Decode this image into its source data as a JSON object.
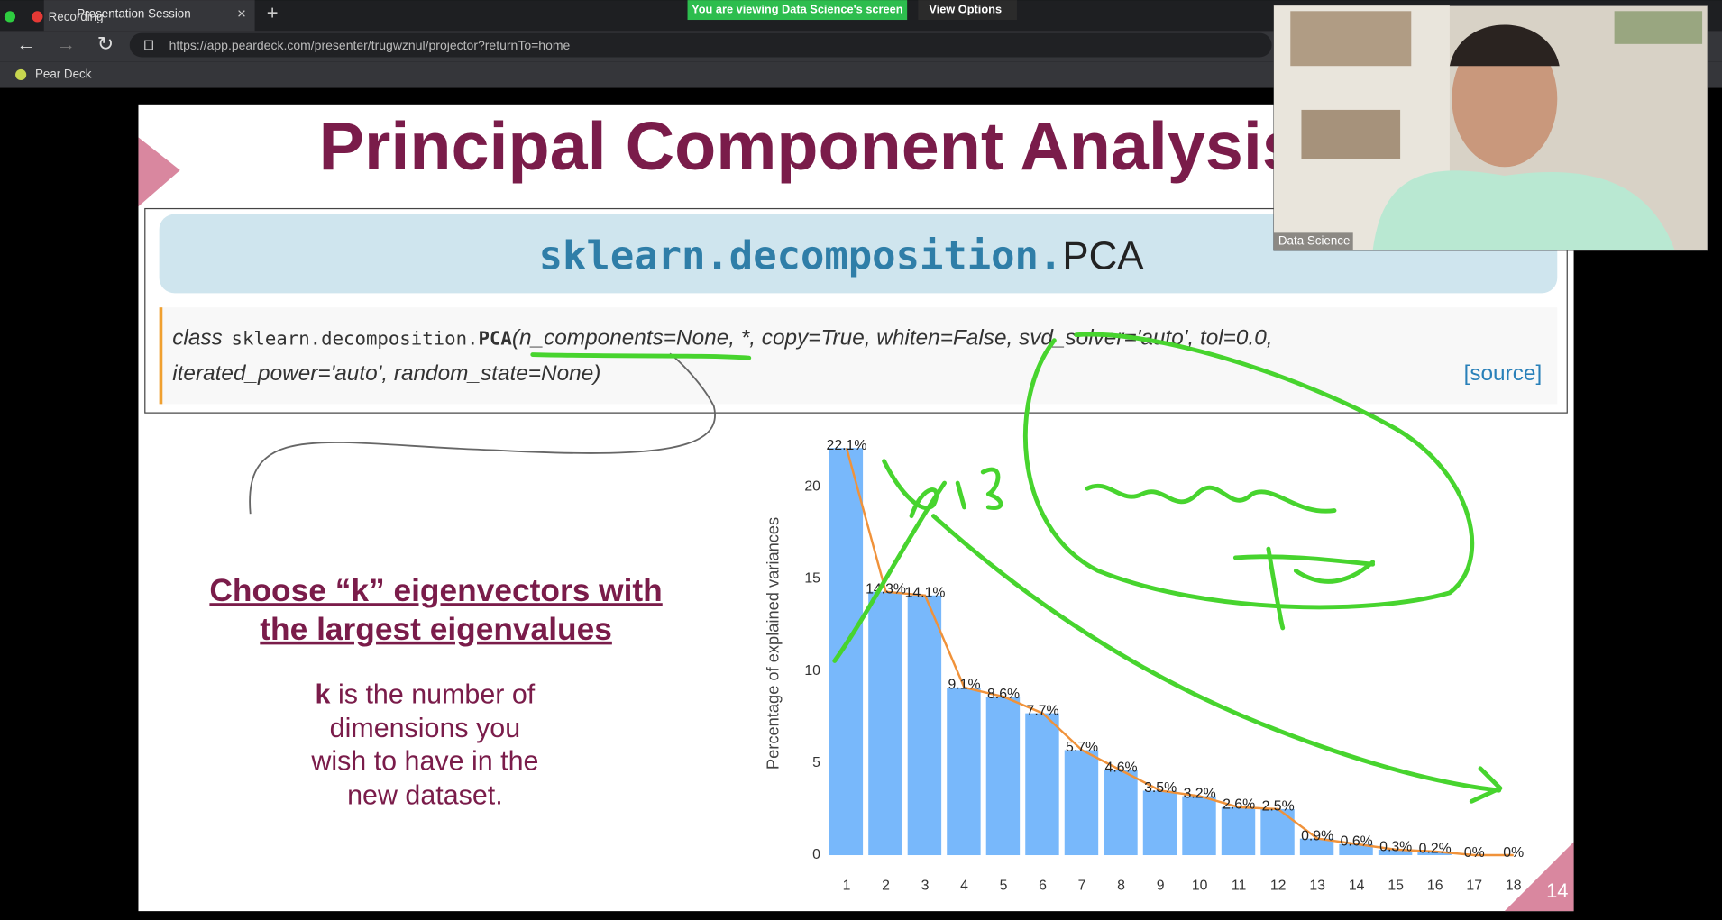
{
  "browser": {
    "recording": "Recording",
    "tab_title": "Presentation Session",
    "url": "https://app.peardeck.com/presenter/trugwznul/projector?returnTo=home",
    "bookmark": "Pear Deck"
  },
  "share_banner": {
    "status": "You are viewing Data Science's screen",
    "options": "View Options"
  },
  "video": {
    "participant": "Data Science"
  },
  "slide": {
    "title": "Principal Component Analysis",
    "doc_header": {
      "module": "sklearn.decomposition.",
      "name": "PCA"
    },
    "signature": {
      "keyword": "class",
      "module": "sklearn.decomposition.",
      "name": "PCA",
      "line1": "(n_components=None, *, copy=True, whiten=False, svd_solver='auto', tol=0.0,",
      "line2": "iterated_power='auto', random_state=None)",
      "source": "[source]"
    },
    "heading": [
      "Choose “k” eigenvectors with",
      "the largest eigenvalues"
    ],
    "body": {
      "bold": "k",
      "first": "is the number of",
      "lines": [
        "dimensions you",
        "wish to have in the",
        "new dataset."
      ]
    },
    "page_number": "14"
  },
  "chart_data": {
    "type": "bar",
    "y_label": "Percentage of explained variances",
    "categories": [
      "1",
      "2",
      "3",
      "4",
      "5",
      "6",
      "7",
      "8",
      "9",
      "10",
      "11",
      "12",
      "13",
      "14",
      "15",
      "16",
      "17",
      "18"
    ],
    "values": [
      22.1,
      14.3,
      14.1,
      9.1,
      8.6,
      7.7,
      5.7,
      4.6,
      3.5,
      3.2,
      2.6,
      2.5,
      0.9,
      0.6,
      0.3,
      0.2,
      0,
      0
    ],
    "value_labels": [
      "22.1%",
      "14.3%",
      "14.1%",
      "9.1%",
      "8.6%",
      "7.7%",
      "5.7%",
      "4.6%",
      "3.5%",
      "3.2%",
      "2.6%",
      "2.5%",
      "0.9%",
      "0.6%",
      "0.3%",
      "0.2%",
      "0%",
      "0%"
    ],
    "color": "#78b8fb",
    "line_color": "#f0923a",
    "ylim": [
      0,
      23
    ],
    "yticks": [
      0,
      5,
      10,
      15,
      20
    ],
    "grid": false
  }
}
